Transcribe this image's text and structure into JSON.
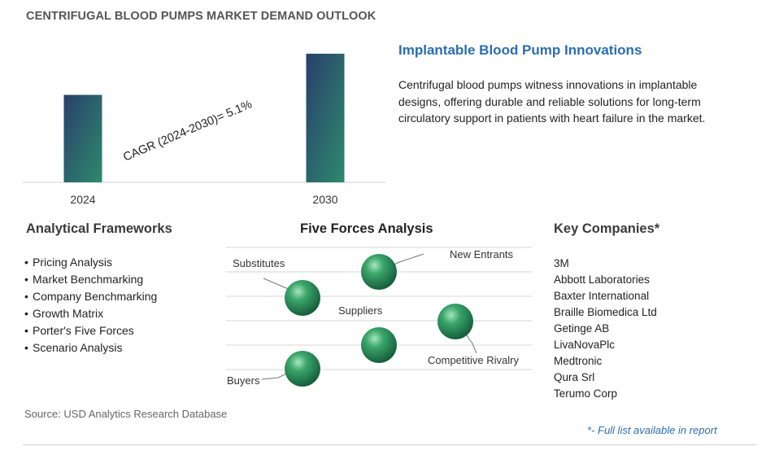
{
  "title": "CENTRIFUGAL BLOOD PUMPS MARKET DEMAND OUTLOOK",
  "chart_data": {
    "type": "bar",
    "categories": [
      "2024",
      "2030"
    ],
    "values": [
      0.68,
      1.0
    ],
    "value_note": "relative bar heights only; no values printed",
    "annotation": "CAGR (2024-2030)=  5.1%",
    "bar_colors": [
      "#2d7d6c",
      "#2a3f6b"
    ]
  },
  "headline": "Implantable Blood Pump Innovations",
  "description": "Centrifugal blood pumps witness innovations in implantable designs, offering durable and reliable solutions for long-term circulatory support in patients with heart failure in the market.",
  "frameworks": {
    "heading": "Analytical Frameworks",
    "items": [
      "Pricing Analysis",
      "Market Benchmarking",
      "Company Benchmarking",
      "Growth Matrix",
      "Porter's Five Forces",
      "Scenario Analysis"
    ]
  },
  "five_forces": {
    "heading": "Five Forces Analysis",
    "labels": {
      "substitutes": "Substitutes",
      "new_entrants": "New Entrants",
      "suppliers": "Suppliers",
      "competitive_rivalry": "Competitive Rivalry",
      "buyers": "Buyers"
    }
  },
  "companies": {
    "heading": "Key Companies*",
    "items": [
      "3M",
      "Abbott Laboratories",
      "Baxter International",
      "Braille Biomedica Ltd",
      "Getinge AB",
      "LivaNovaPlc",
      "Medtronic",
      "Qura Srl",
      "Terumo Corp"
    ]
  },
  "source": "Source: USD Analytics Research Database",
  "footnote": "*- Full list available in report",
  "colors": {
    "accent": "#2a6db0",
    "sphere": "#2e8b57"
  }
}
